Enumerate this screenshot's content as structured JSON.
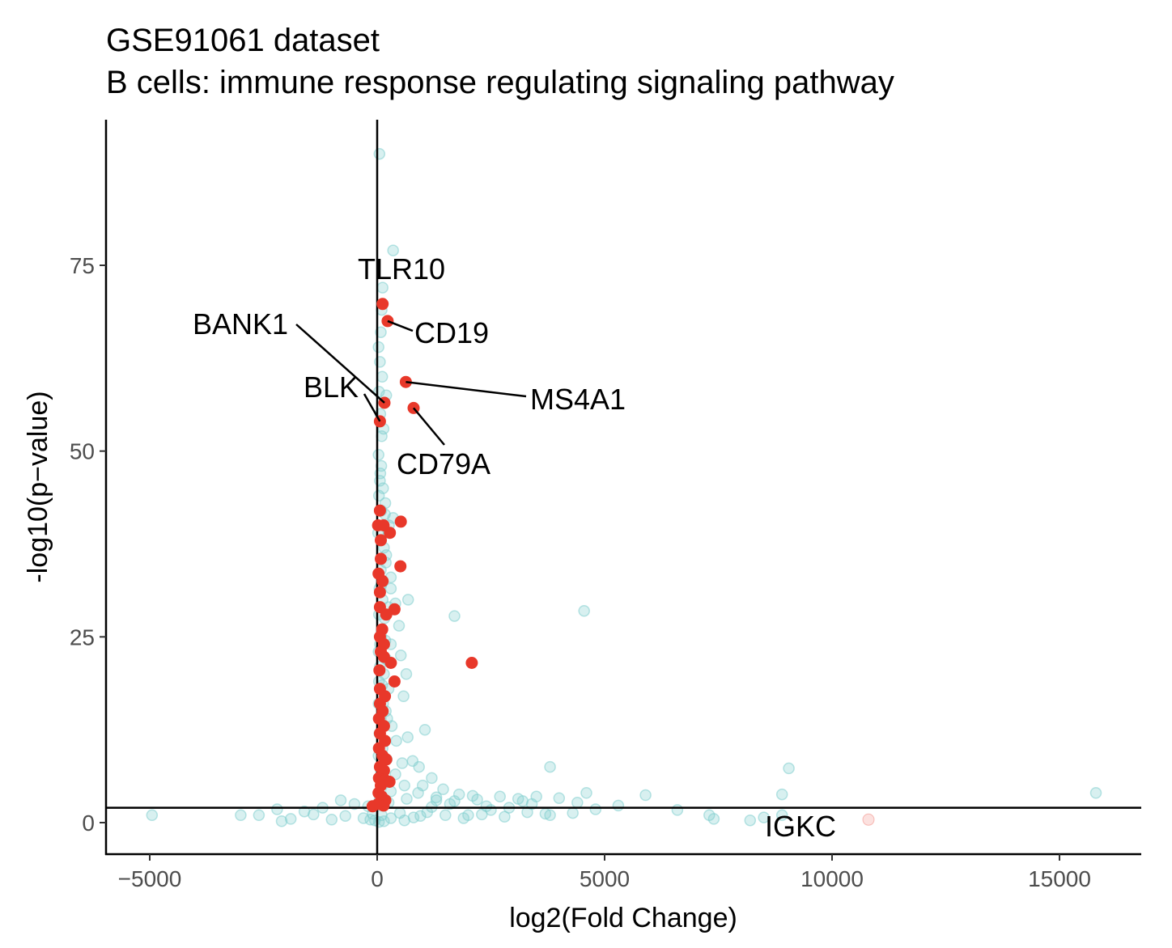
{
  "chart_data": {
    "type": "scatter",
    "title": "GSE91061 dataset",
    "subtitle": "B cells: immune response regulating signaling pathway",
    "xlabel": "log2(Fold Change)",
    "ylabel": "-log10(p−value)",
    "xlim": [
      -6000,
      16800
    ],
    "ylim": [
      -4,
      95
    ],
    "xticks": [
      -5000,
      0,
      5000,
      10000,
      15000
    ],
    "xtick_labels": [
      "−5000",
      "0",
      "5000",
      "10000",
      "15000"
    ],
    "yticks": [
      0,
      25,
      50,
      75
    ],
    "ytick_labels": [
      "0",
      "25",
      "50",
      "75"
    ],
    "reference_lines": {
      "vline_x": 0,
      "hline_y": 2
    },
    "grid": false,
    "colors": {
      "background_points": "#7fcdcd",
      "highlight_points": "#e8382a",
      "axis": "#000000"
    },
    "series": [
      {
        "role": "background",
        "points": [
          [
            50,
            90
          ],
          [
            350,
            77
          ],
          [
            120,
            72
          ],
          [
            80,
            66
          ],
          [
            60,
            62
          ],
          [
            110,
            60
          ],
          [
            40,
            58
          ],
          [
            70,
            55
          ],
          [
            100,
            52
          ],
          [
            30,
            49.5
          ],
          [
            90,
            48
          ],
          [
            60,
            46
          ],
          [
            130,
            45
          ],
          [
            40,
            44
          ],
          [
            180,
            43
          ],
          [
            90,
            42
          ],
          [
            350,
            41
          ],
          [
            260,
            40
          ],
          [
            20,
            39
          ],
          [
            150,
            37
          ],
          [
            200,
            36
          ],
          [
            80,
            34
          ],
          [
            300,
            33
          ],
          [
            50,
            31.5
          ],
          [
            120,
            30
          ],
          [
            250,
            29
          ],
          [
            40,
            28
          ],
          [
            160,
            27.5
          ],
          [
            480,
            26.5
          ],
          [
            90,
            25
          ],
          [
            300,
            24
          ],
          [
            30,
            23
          ],
          [
            200,
            22
          ],
          [
            60,
            21
          ],
          [
            150,
            20
          ],
          [
            640,
            20
          ],
          [
            40,
            19
          ],
          [
            110,
            18.5
          ],
          [
            250,
            18
          ],
          [
            580,
            17
          ],
          [
            30,
            16
          ],
          [
            190,
            15
          ],
          [
            80,
            14
          ],
          [
            320,
            13
          ],
          [
            50,
            12
          ],
          [
            420,
            11
          ],
          [
            120,
            10
          ],
          [
            670,
            11.5
          ],
          [
            1050,
            12.5
          ],
          [
            30,
            9
          ],
          [
            210,
            8.5
          ],
          [
            550,
            8
          ],
          [
            920,
            7.5
          ],
          [
            780,
            8.3
          ],
          [
            80,
            7
          ],
          [
            400,
            6.5
          ],
          [
            1200,
            6
          ],
          [
            170,
            5.5
          ],
          [
            600,
            5
          ],
          [
            1450,
            4.5
          ],
          [
            300,
            4.2
          ],
          [
            900,
            4
          ],
          [
            1800,
            3.8
          ],
          [
            2100,
            3.6
          ],
          [
            2700,
            3.5
          ],
          [
            3100,
            3.2
          ],
          [
            3500,
            3.5
          ],
          [
            4000,
            3.3
          ],
          [
            4600,
            4
          ],
          [
            50,
            3
          ],
          [
            650,
            3.2
          ],
          [
            1300,
            3.4
          ],
          [
            250,
            2.7
          ],
          [
            1600,
            2.5
          ],
          [
            2400,
            2.2
          ],
          [
            2900,
            2
          ],
          [
            3400,
            2.5
          ],
          [
            -200,
            2.2
          ],
          [
            -500,
            2.5
          ],
          [
            -800,
            3
          ],
          [
            -1200,
            2
          ],
          [
            -1600,
            1.5
          ],
          [
            -2200,
            1.8
          ],
          [
            -2600,
            1
          ],
          [
            -3000,
            1
          ],
          [
            -4950,
            1
          ],
          [
            -100,
            1.2
          ],
          [
            -300,
            0.6
          ],
          [
            -700,
            0.9
          ],
          [
            -1000,
            0.4
          ],
          [
            -1400,
            1.1
          ],
          [
            -1900,
            0.5
          ],
          [
            -2100,
            0.2
          ],
          [
            100,
            1
          ],
          [
            300,
            0.6
          ],
          [
            500,
            1.3
          ],
          [
            800,
            0.7
          ],
          [
            1100,
            1.4
          ],
          [
            1500,
            1
          ],
          [
            1900,
            0.6
          ],
          [
            2300,
            1.1
          ],
          [
            2800,
            0.8
          ],
          [
            3300,
            1.4
          ],
          [
            3800,
            1
          ],
          [
            4300,
            1.3
          ],
          [
            4800,
            1.8
          ],
          [
            5300,
            2.3
          ],
          [
            5900,
            3.7
          ],
          [
            6600,
            1.7
          ],
          [
            7300,
            1
          ],
          [
            7400,
            0.5
          ],
          [
            8200,
            0.3
          ],
          [
            8500,
            0.7
          ],
          [
            8900,
            1
          ],
          [
            9050,
            7.3
          ],
          [
            8900,
            3.8
          ],
          [
            15800,
            4
          ],
          [
            3800,
            7.5
          ],
          [
            4550,
            28.5
          ],
          [
            1700,
            27.8
          ],
          [
            190,
            35
          ],
          [
            250,
            39
          ],
          [
            400,
            29.5
          ],
          [
            300,
            31.5
          ],
          [
            180,
            24.5
          ],
          [
            520,
            22.5
          ],
          [
            680,
            30
          ],
          [
            1000,
            5
          ],
          [
            1300,
            3
          ],
          [
            2000,
            1
          ],
          [
            -50,
            0.3
          ],
          [
            40,
            0.1
          ],
          [
            150,
            0.2
          ],
          [
            -150,
            0.4
          ],
          [
            600,
            0.3
          ],
          [
            950,
            0.9
          ],
          [
            1200,
            2.1
          ],
          [
            1700,
            2.9
          ],
          [
            2200,
            3.1
          ],
          [
            2500,
            1.7
          ],
          [
            3200,
            2.9
          ],
          [
            3700,
            1.2
          ],
          [
            4400,
            2.7
          ],
          [
            220,
            14
          ],
          [
            130,
            16
          ],
          [
            60,
            24
          ],
          [
            90,
            32
          ],
          [
            170,
            41.5
          ],
          [
            70,
            47
          ],
          [
            140,
            53
          ],
          [
            200,
            57.5
          ],
          [
            30,
            64
          ],
          [
            100,
            69
          ]
        ]
      },
      {
        "role": "highlight",
        "points": [
          [
            120,
            69.8
          ],
          [
            230,
            67.5
          ],
          [
            630,
            59.3
          ],
          [
            160,
            56.5
          ],
          [
            800,
            55.8
          ],
          [
            60,
            54
          ],
          [
            60,
            42
          ],
          [
            520,
            40.5
          ],
          [
            20,
            40
          ],
          [
            140,
            40
          ],
          [
            280,
            39
          ],
          [
            80,
            38
          ],
          [
            80,
            35.5
          ],
          [
            510,
            34.5
          ],
          [
            30,
            33.5
          ],
          [
            120,
            32.5
          ],
          [
            60,
            31
          ],
          [
            380,
            28.7
          ],
          [
            60,
            29
          ],
          [
            200,
            28
          ],
          [
            110,
            26
          ],
          [
            60,
            25
          ],
          [
            150,
            24
          ],
          [
            80,
            23
          ],
          [
            150,
            22.3
          ],
          [
            300,
            21.5
          ],
          [
            2080,
            21.5
          ],
          [
            50,
            20.5
          ],
          [
            380,
            19
          ],
          [
            60,
            18
          ],
          [
            170,
            17
          ],
          [
            60,
            16
          ],
          [
            120,
            15
          ],
          [
            40,
            14
          ],
          [
            150,
            13
          ],
          [
            60,
            12
          ],
          [
            170,
            11
          ],
          [
            40,
            10
          ],
          [
            120,
            9
          ],
          [
            200,
            8.5
          ],
          [
            60,
            7.5
          ],
          [
            150,
            7
          ],
          [
            40,
            6
          ],
          [
            160,
            5.8
          ],
          [
            80,
            5
          ],
          [
            270,
            5.5
          ],
          [
            30,
            4
          ],
          [
            100,
            3.5
          ],
          [
            180,
            3
          ],
          [
            60,
            2.5
          ],
          [
            140,
            2.3
          ],
          [
            -100,
            2.2
          ],
          [
            20,
            2.5
          ],
          [
            10800,
            0.4
          ]
        ]
      }
    ],
    "labels": [
      {
        "text": "TLR10",
        "x": 120,
        "y": 69.8
      },
      {
        "text": "CD19",
        "x": 230,
        "y": 67.5
      },
      {
        "text": "BANK1",
        "x": 160,
        "y": 56.5
      },
      {
        "text": "BLK",
        "x": 60,
        "y": 54
      },
      {
        "text": "MS4A1",
        "x": 630,
        "y": 59.3
      },
      {
        "text": "CD79A",
        "x": 800,
        "y": 55.8
      },
      {
        "text": "IGKC",
        "x": 10800,
        "y": 0.4
      }
    ]
  }
}
